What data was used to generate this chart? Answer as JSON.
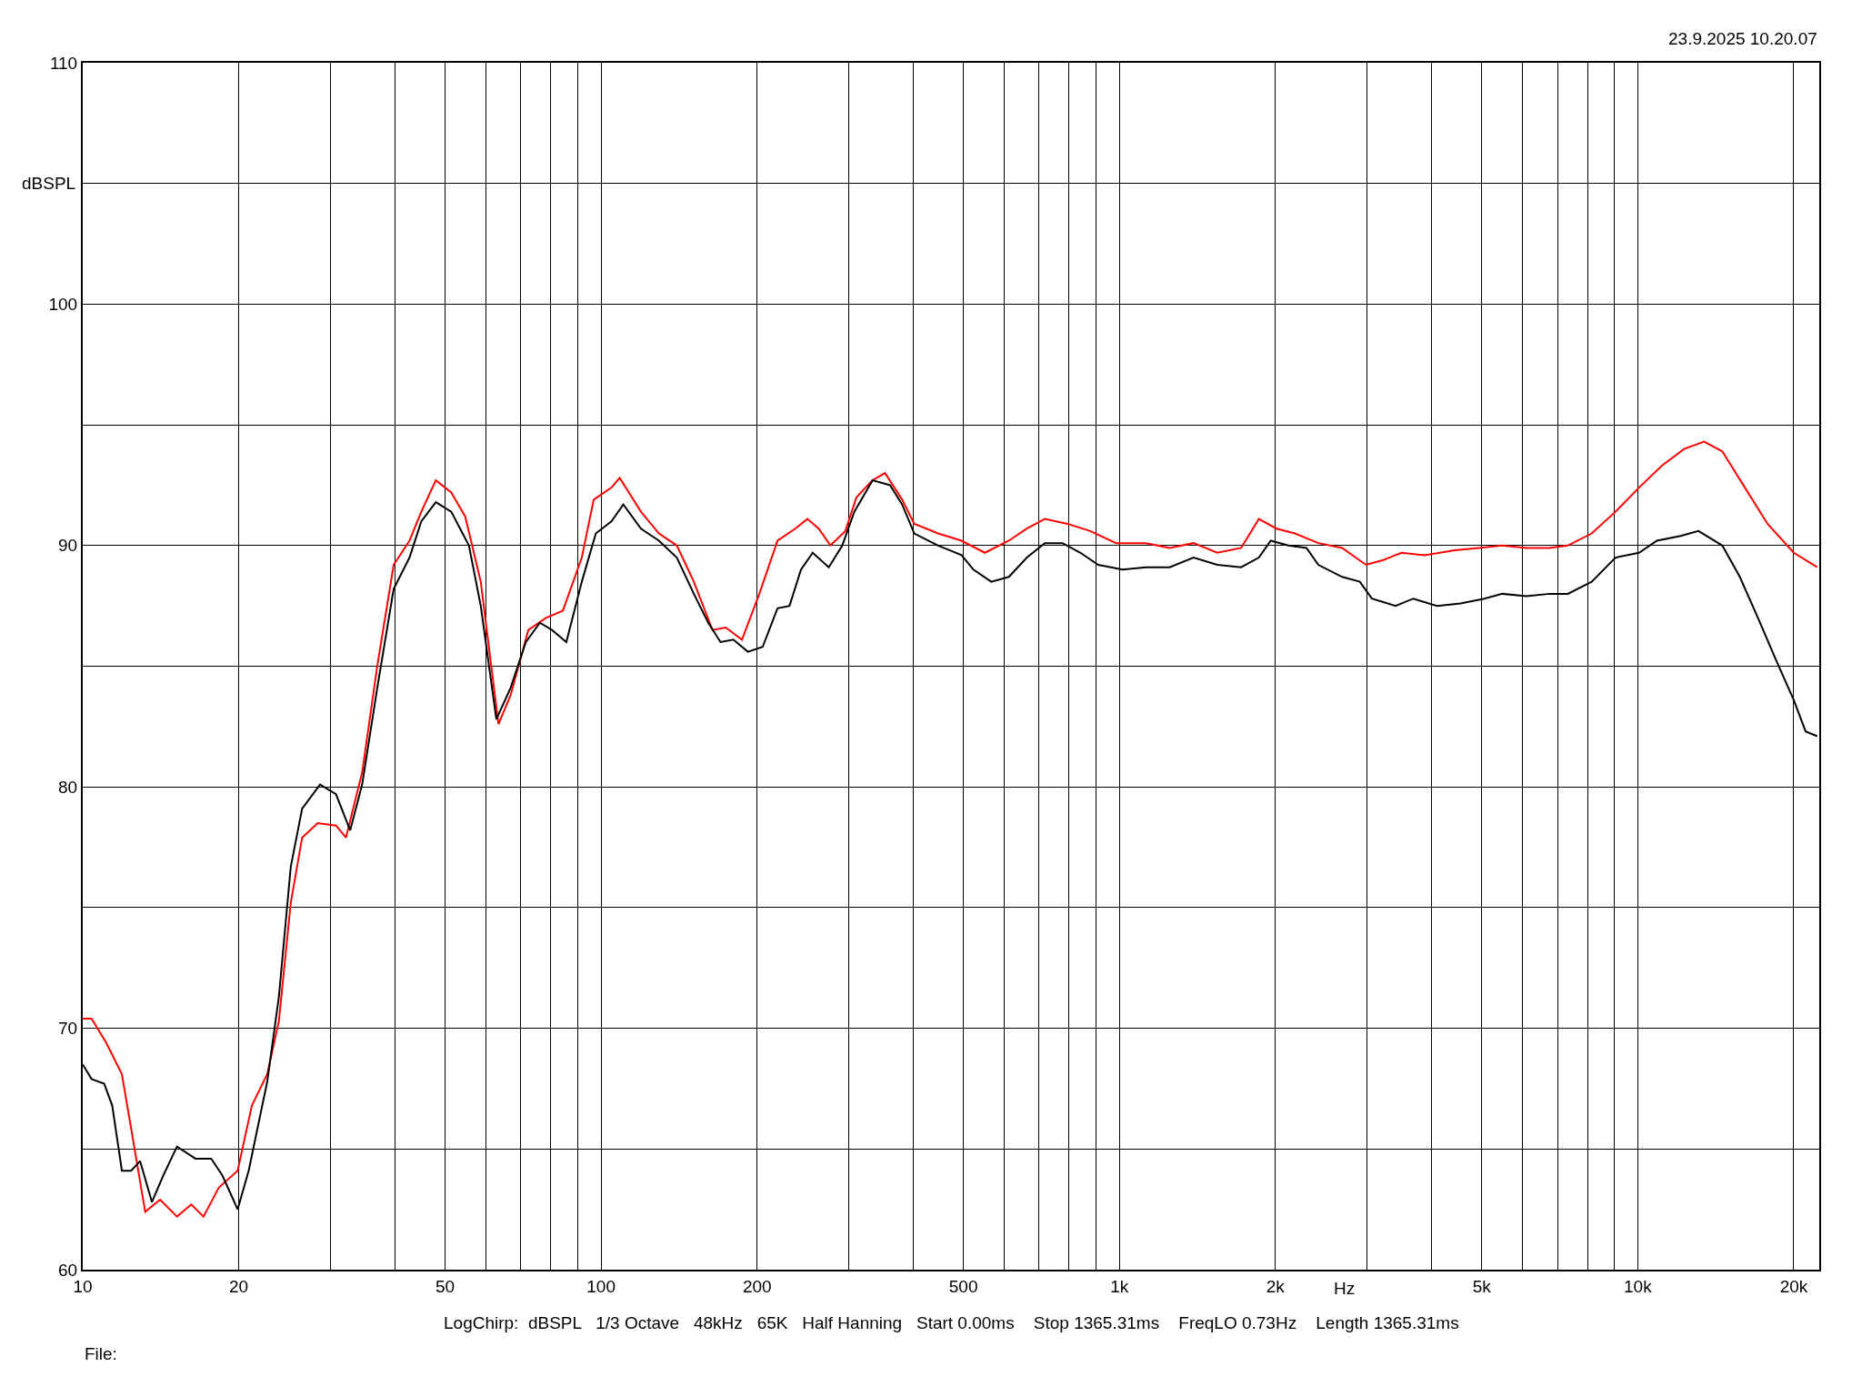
{
  "chart_data": {
    "type": "line",
    "xlabel": "Hz",
    "ylabel": "dBSPL",
    "log": "x",
    "grid": true,
    "marker": "none",
    "line_style": "solid",
    "xlim": [
      10,
      22400
    ],
    "ylim": [
      60,
      110
    ],
    "xticks": [
      10,
      20,
      {
        "value": 30,
        "label": null
      },
      {
        "value": 40,
        "label": null
      },
      50,
      {
        "value": 60,
        "label": null
      },
      {
        "value": 70,
        "label": null
      },
      {
        "value": 80,
        "label": null
      },
      {
        "value": 90,
        "label": null
      },
      100,
      200,
      {
        "value": 300,
        "label": null
      },
      {
        "value": 400,
        "label": null
      },
      500,
      {
        "value": 600,
        "label": null
      },
      {
        "value": 700,
        "label": null
      },
      {
        "value": 800,
        "label": null
      },
      {
        "value": 900,
        "label": null
      },
      {
        "value": 1000,
        "label": "1k"
      },
      {
        "value": 2000,
        "label": "2k"
      },
      {
        "value": 3000,
        "label": null
      },
      {
        "value": 4000,
        "label": null
      },
      {
        "value": 5000,
        "label": "5k"
      },
      {
        "value": 6000,
        "label": null
      },
      {
        "value": 7000,
        "label": null
      },
      {
        "value": 8000,
        "label": null
      },
      {
        "value": 9000,
        "label": null
      },
      {
        "value": 10000,
        "label": "10k"
      },
      {
        "value": 20000,
        "label": "20k"
      }
    ],
    "yticks": [
      60,
      {
        "value": 65,
        "label": null
      },
      70,
      {
        "value": 75,
        "label": null
      },
      80,
      {
        "value": 85,
        "label": null
      },
      90,
      {
        "value": 95,
        "label": null
      },
      100,
      {
        "value": 105,
        "label": null
      },
      110
    ],
    "annotations": [
      "23.9.2025 10.20.07",
      "LogChirp:  dBSPL   1/3 Octave   48kHz   65K   Half Hanning   Start 0.00ms    Stop 1365.31ms    FreqLO 0.73Hz    Length 1365.31ms",
      "File:"
    ],
    "series": [
      {
        "color": "#ff0000",
        "x": [
          10,
          10.4,
          11.1,
          11.9,
          12.5,
          13.2,
          14.1,
          15.2,
          16.2,
          17.1,
          18.3,
          19.9,
          21.2,
          22.7,
          23.9,
          25.2,
          26.5,
          28.4,
          30.8,
          32.2,
          34.6,
          37,
          39.8,
          42.7,
          45,
          48,
          51.4,
          54.7,
          58.6,
          63.4,
          66.9,
          72.4,
          78.3,
          84.4,
          91.8,
          96.8,
          104.7,
          108.6,
          119.4,
          129.3,
          140,
          151,
          164,
          174,
          187,
          202,
          219,
          237,
          250,
          263,
          277,
          296,
          311,
          334,
          353,
          381,
          402,
          447,
          496,
          550,
          612,
          663,
          718,
          794,
          878,
          986,
          1125,
          1250,
          1390,
          1545,
          1717,
          1858,
          2010,
          2180,
          2420,
          2690,
          2990,
          3230,
          3500,
          3880,
          4440,
          4930,
          5480,
          6100,
          6760,
          7330,
          8150,
          9060,
          10060,
          11120,
          12290,
          13430,
          14560,
          16100,
          17800,
          20000,
          22200
        ],
        "values": [
          70.4,
          70.4,
          69.4,
          68.1,
          65.4,
          62.4,
          62.9,
          62.2,
          62.7,
          62.2,
          63.4,
          64.1,
          66.8,
          68.1,
          70.3,
          75.2,
          77.9,
          78.5,
          78.4,
          77.9,
          80.6,
          85.0,
          89.2,
          90.2,
          91.4,
          92.7,
          92.2,
          91.2,
          88.5,
          82.6,
          83.8,
          86.5,
          87.0,
          87.3,
          89.5,
          91.9,
          92.4,
          92.8,
          91.4,
          90.5,
          90.0,
          88.5,
          86.5,
          86.6,
          86.1,
          88.0,
          90.2,
          90.7,
          91.1,
          90.7,
          90.0,
          90.6,
          92.0,
          92.7,
          93.0,
          91.9,
          90.9,
          90.5,
          90.2,
          89.7,
          90.2,
          90.7,
          91.1,
          90.9,
          90.6,
          90.1,
          90.1,
          89.9,
          90.1,
          89.7,
          89.9,
          91.1,
          90.7,
          90.5,
          90.1,
          89.9,
          89.2,
          89.4,
          89.7,
          89.6,
          89.8,
          89.9,
          90.0,
          89.9,
          89.9,
          90.0,
          90.5,
          91.4,
          92.4,
          93.3,
          94.0,
          94.3,
          93.9,
          92.4,
          90.9,
          89.7,
          89.1
        ]
      },
      {
        "color": "#000000",
        "x": [
          10,
          10.4,
          11,
          11.4,
          11.9,
          12.4,
          12.9,
          13.6,
          14.3,
          15.2,
          16.5,
          17.7,
          18.6,
          19.9,
          20.9,
          22.7,
          23.9,
          25.2,
          26.5,
          28.7,
          30.8,
          32.8,
          34.6,
          37,
          39.8,
          42.7,
          45,
          48,
          51.4,
          55.6,
          58.6,
          62.8,
          66.9,
          71.6,
          76.2,
          80.4,
          85.7,
          91.8,
          97.7,
          104.7,
          110.4,
          119.4,
          129.3,
          140,
          151,
          161,
          170,
          180,
          192,
          205,
          219,
          231,
          243,
          256,
          275,
          292,
          308,
          334,
          361,
          381,
          402,
          447,
          496,
          523,
          566,
          612,
          663,
          718,
          777,
          841,
          910,
          1014,
          1125,
          1250,
          1390,
          1545,
          1717,
          1858,
          1959,
          2118,
          2296,
          2420,
          2690,
          2910,
          3070,
          3410,
          3690,
          4100,
          4550,
          5060,
          5480,
          6100,
          6760,
          7330,
          8150,
          9060,
          10060,
          10890,
          12100,
          13100,
          14560,
          15740,
          17060,
          18450,
          20000,
          21080,
          22200
        ],
        "values": [
          68.5,
          67.9,
          67.7,
          66.8,
          64.1,
          64.1,
          64.5,
          62.8,
          63.9,
          65.1,
          64.6,
          64.6,
          63.9,
          62.5,
          64.1,
          67.8,
          71.3,
          76.7,
          79.1,
          80.1,
          79.7,
          78.2,
          80.1,
          84.1,
          88.2,
          89.5,
          91.0,
          91.8,
          91.4,
          90.0,
          87.5,
          82.8,
          84.1,
          86.0,
          86.8,
          86.5,
          86.0,
          88.5,
          90.5,
          91.0,
          91.7,
          90.7,
          90.2,
          89.5,
          88.0,
          86.8,
          86.0,
          86.1,
          85.6,
          85.8,
          87.4,
          87.5,
          89.0,
          89.7,
          89.1,
          90.0,
          91.4,
          92.7,
          92.5,
          91.7,
          90.5,
          90.0,
          89.6,
          89.0,
          88.5,
          88.7,
          89.5,
          90.1,
          90.1,
          89.7,
          89.2,
          89.0,
          89.1,
          89.1,
          89.5,
          89.2,
          89.1,
          89.5,
          90.2,
          90.0,
          89.9,
          89.2,
          88.7,
          88.5,
          87.8,
          87.5,
          87.8,
          87.5,
          87.6,
          87.8,
          88.0,
          87.9,
          88.0,
          88.0,
          88.5,
          89.5,
          89.7,
          90.2,
          90.4,
          90.6,
          90.0,
          88.7,
          87.0,
          85.3,
          83.6,
          82.3,
          82.1
        ]
      }
    ]
  }
}
